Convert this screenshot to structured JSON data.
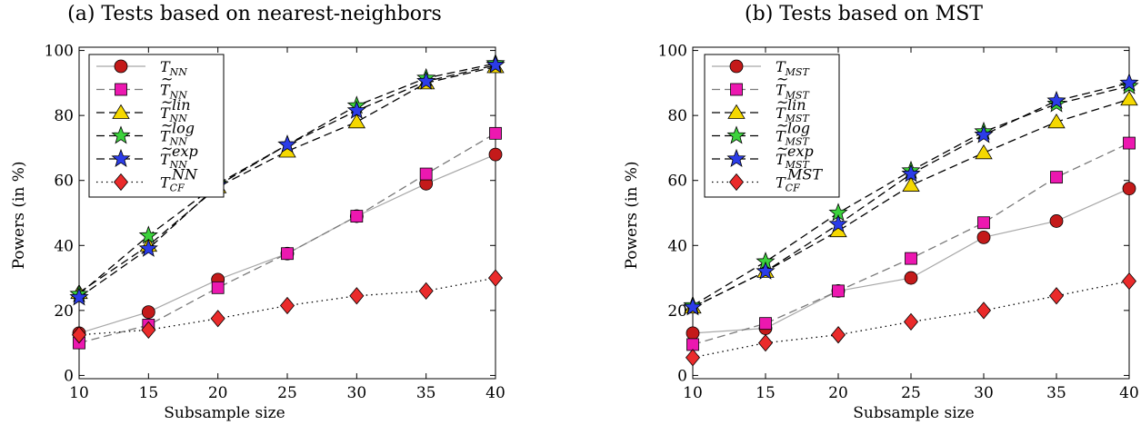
{
  "chart_data": [
    {
      "type": "line",
      "title": "(a) Tests based on nearest-neighbors",
      "xlabel": "Subsample size",
      "ylabel": "Powers (in %)",
      "x": [
        10,
        15,
        20,
        25,
        30,
        35,
        40
      ],
      "xticks": [
        "10",
        "15",
        "20",
        "25",
        "30",
        "35",
        "40"
      ],
      "yticks": [
        "0",
        "20",
        "40",
        "60",
        "80",
        "100"
      ],
      "xlim": [
        10,
        40
      ],
      "ylim": [
        -1,
        101
      ],
      "legend_position": "top-left",
      "series": [
        {
          "name": "T_NN",
          "style": "solid",
          "line_color": "#a8a8a8",
          "marker": "circle",
          "marker_color": "#c41a1a",
          "values": [
            13,
            19.5,
            29.5,
            37.5,
            49,
            59,
            68
          ]
        },
        {
          "name": "T̃_NN",
          "style": "dashed",
          "line_color": "#7a7a7a",
          "marker": "square",
          "marker_color": "#ec18b0",
          "values": [
            10,
            15.5,
            27,
            37.5,
            49,
            62,
            74.5
          ]
        },
        {
          "name": "T̃_NN lin",
          "style": "dashed",
          "line_color": "#000000",
          "marker": "triangle",
          "marker_color": "#f5d800",
          "values": [
            25.5,
            40,
            58,
            69,
            78,
            90,
            95
          ]
        },
        {
          "name": "T̃_NN log",
          "style": "dashed",
          "line_color": "#000000",
          "marker": "star",
          "marker_color": "#3cd23c",
          "values": [
            25,
            43,
            59,
            71,
            83,
            91.5,
            96
          ]
        },
        {
          "name": "T̃_NN exp",
          "style": "dashed",
          "line_color": "#000000",
          "marker": "star",
          "marker_color": "#2b3ce8",
          "values": [
            24,
            39,
            58.5,
            71,
            81.5,
            90.5,
            95.5
          ]
        },
        {
          "name": "T_CF NN",
          "style": "dotted",
          "line_color": "#000000",
          "marker": "diamond",
          "marker_color": "#ea2b2b",
          "values": [
            12.5,
            14,
            17.5,
            21.5,
            24.5,
            26,
            30
          ]
        }
      ],
      "legend": [
        {
          "base": "T",
          "sub": "NN",
          "sup": "",
          "tilde": false
        },
        {
          "base": "T",
          "sub": "NN",
          "sup": "",
          "tilde": true
        },
        {
          "base": "T",
          "sub": "NN",
          "sup": "lin",
          "tilde": true
        },
        {
          "base": "T",
          "sub": "NN",
          "sup": "log",
          "tilde": true
        },
        {
          "base": "T",
          "sub": "NN",
          "sup": "exp",
          "tilde": true
        },
        {
          "base": "T",
          "sub": "CF",
          "sup": "NN",
          "tilde": false
        }
      ]
    },
    {
      "type": "line",
      "title": "(b) Tests based on MST",
      "xlabel": "Subsample size",
      "ylabel": "Powers (in %)",
      "x": [
        10,
        15,
        20,
        25,
        30,
        35,
        40
      ],
      "xticks": [
        "10",
        "15",
        "20",
        "25",
        "30",
        "35",
        "40"
      ],
      "yticks": [
        "0",
        "20",
        "40",
        "60",
        "80",
        "100"
      ],
      "xlim": [
        10,
        40
      ],
      "ylim": [
        -1,
        101
      ],
      "legend_position": "top-left",
      "series": [
        {
          "name": "T_MST",
          "style": "solid",
          "line_color": "#a8a8a8",
          "marker": "circle",
          "marker_color": "#c41a1a",
          "values": [
            13,
            14.5,
            26,
            30,
            42.5,
            47.5,
            57.5
          ]
        },
        {
          "name": "T̃_MST",
          "style": "dashed",
          "line_color": "#7a7a7a",
          "marker": "square",
          "marker_color": "#ec18b0",
          "values": [
            9.5,
            16,
            26,
            36,
            47,
            61,
            71.5
          ]
        },
        {
          "name": "T̃_MST lin",
          "style": "dashed",
          "line_color": "#000000",
          "marker": "triangle",
          "marker_color": "#f5d800",
          "values": [
            21,
            32,
            44.5,
            58.5,
            68.5,
            78,
            85
          ]
        },
        {
          "name": "T̃_MST log",
          "style": "dashed",
          "line_color": "#000000",
          "marker": "star",
          "marker_color": "#3cd23c",
          "values": [
            21.5,
            35,
            50,
            63,
            75,
            83.5,
            89
          ]
        },
        {
          "name": "T̃_MST exp",
          "style": "dashed",
          "line_color": "#000000",
          "marker": "star",
          "marker_color": "#2b3ce8",
          "values": [
            21,
            32,
            46.5,
            62,
            74,
            84.5,
            90
          ]
        },
        {
          "name": "T_CF MST",
          "style": "dotted",
          "line_color": "#000000",
          "marker": "diamond",
          "marker_color": "#ea2b2b",
          "values": [
            5.5,
            10,
            12.5,
            16.5,
            20,
            24.5,
            29
          ]
        }
      ],
      "legend": [
        {
          "base": "T",
          "sub": "MST",
          "sup": "",
          "tilde": false
        },
        {
          "base": "T",
          "sub": "MST",
          "sup": "",
          "tilde": true
        },
        {
          "base": "T",
          "sub": "MST",
          "sup": "lin",
          "tilde": true
        },
        {
          "base": "T",
          "sub": "MST",
          "sup": "log",
          "tilde": true
        },
        {
          "base": "T",
          "sub": "MST",
          "sup": "exp",
          "tilde": true
        },
        {
          "base": "T",
          "sub": "CF",
          "sup": "MST",
          "tilde": false
        }
      ]
    }
  ]
}
